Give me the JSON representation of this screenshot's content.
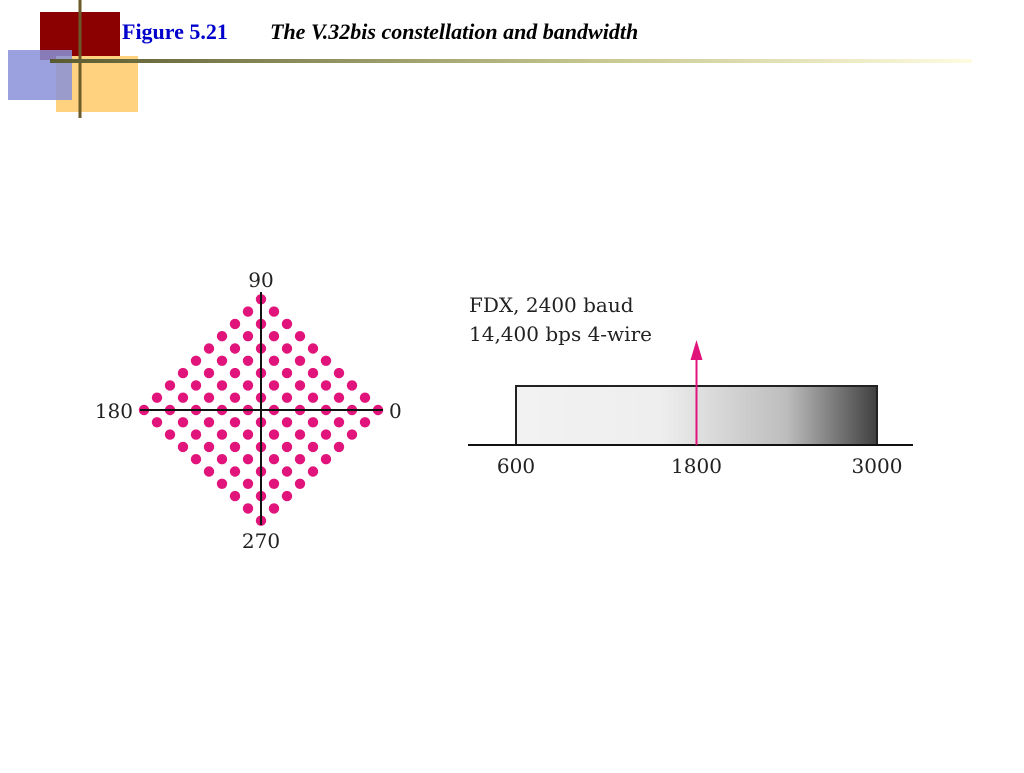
{
  "header": {
    "figure": "Figure 5.21",
    "title": "The V.32bis constellation and bandwidth"
  },
  "constellation": {
    "labels": {
      "top": "90",
      "left": "180",
      "right": "0",
      "bottom": "270"
    }
  },
  "bandwidth": {
    "note": [
      "FDX, 2400 baud",
      "14,400 bps 4-wire"
    ],
    "ticks": [
      600,
      1800,
      3000
    ]
  }
}
